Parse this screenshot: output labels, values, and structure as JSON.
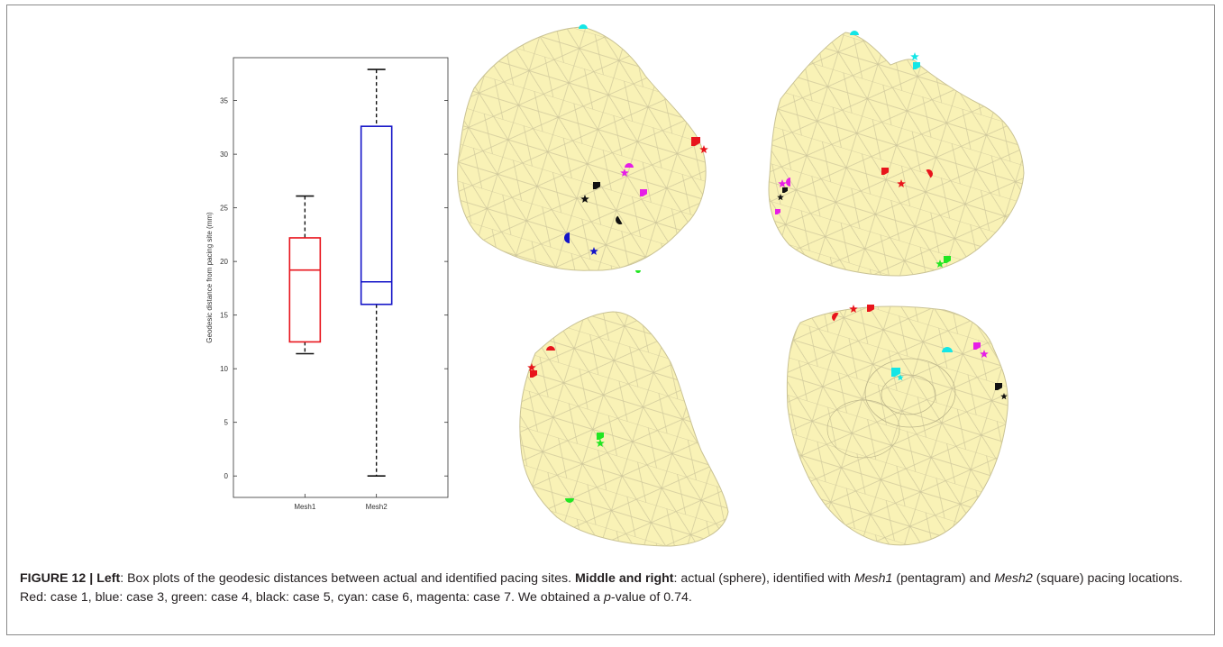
{
  "figure": {
    "caption": {
      "label": "FIGURE 12 | ",
      "left_title": "Left",
      "left_text": ": Box plots of the geodesic distances between actual and identified pacing sites. ",
      "middle_title": "Middle and right",
      "middle_text_1": ": actual (sphere), identified with ",
      "mesh1": "Mesh1",
      "middle_text_2": " (pentagram) and ",
      "mesh2": "Mesh2",
      "middle_text_3": " (square) pacing locations. Red: case 1, blue: case 3, green: case 4, black: case 5, cyan: case 6, magenta: case 7. We obtained a ",
      "p_italic": "p",
      "p_text": "-value of 0.74."
    }
  },
  "chart_data": {
    "type": "box",
    "title": "",
    "xlabel": "",
    "ylabel": "Geodesic distance from pacing site (mm)",
    "ylim": [
      -2,
      39
    ],
    "yticks": [
      0,
      5,
      10,
      15,
      20,
      25,
      30,
      35
    ],
    "categories": [
      "Mesh1",
      "Mesh2"
    ],
    "boxes": [
      {
        "category": "Mesh1",
        "color": "#e8141c",
        "whisker_low": 11.4,
        "q1": 12.5,
        "median": 19.2,
        "q3": 22.2,
        "whisker_high": 26.1
      },
      {
        "category": "Mesh2",
        "color": "#1414c8",
        "whisker_low": 0.0,
        "q1": 16.0,
        "median": 18.1,
        "q3": 32.6,
        "whisker_high": 37.9
      }
    ],
    "grid": false
  },
  "meshes": {
    "fill": "#f9f2b6",
    "edge": "#c9c294",
    "marker_colors": {
      "red": "#e8141c",
      "blue": "#1414c8",
      "green": "#22e622",
      "black": "#111111",
      "cyan": "#14e6e6",
      "magenta": "#e61ee6"
    }
  }
}
